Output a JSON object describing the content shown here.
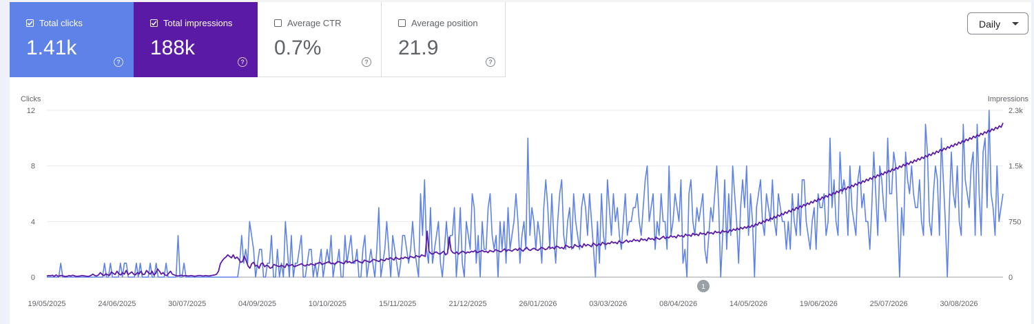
{
  "metrics": [
    {
      "label": "Total clicks",
      "value": "1.41k",
      "checked": true,
      "color": "#5e82e8"
    },
    {
      "label": "Total impressions",
      "value": "188k",
      "checked": true,
      "color": "#5a1aa6"
    },
    {
      "label": "Average CTR",
      "value": "0.7%",
      "checked": false
    },
    {
      "label": "Average position",
      "value": "21.9",
      "checked": false
    }
  ],
  "period_select": {
    "value": "Daily"
  },
  "annotation_badge": "1",
  "chart_data": {
    "type": "line",
    "left_axis": {
      "label": "Clicks",
      "ticks": [
        "12",
        "8",
        "4",
        "0"
      ],
      "range": [
        0,
        12
      ]
    },
    "right_axis": {
      "label": "Impressions",
      "ticks": [
        "2.3k",
        "1.5k",
        "750",
        "0"
      ],
      "range": [
        0,
        2250
      ]
    },
    "x_tick_labels": [
      "19/05/2025",
      "24/06/2025",
      "30/07/2025",
      "04/09/2025",
      "10/10/2025",
      "15/11/2025",
      "21/12/2025",
      "26/01/2026",
      "03/03/2026",
      "08/04/2026",
      "14/05/2026",
      "19/06/2026",
      "25/07/2026",
      "30/08/2026"
    ],
    "x_range": [
      "19/05/2025",
      "25/09/2026"
    ],
    "grid": true,
    "series": [
      {
        "name": "Clicks",
        "axis": "left",
        "color": "#5e82e8",
        "values": [
          0,
          0,
          0,
          0,
          0,
          0,
          0,
          1,
          0,
          0,
          0,
          0,
          0,
          0,
          0,
          0,
          0,
          0,
          0,
          0,
          0,
          0,
          0,
          0,
          0,
          0,
          0,
          0,
          0,
          1,
          0,
          0,
          1,
          0,
          0,
          0,
          0,
          1,
          0,
          1,
          1,
          0,
          0,
          0,
          0,
          1,
          0,
          1,
          0,
          0,
          0,
          0,
          1,
          0,
          0,
          1,
          0,
          0,
          0,
          0,
          1,
          0,
          0,
          0,
          0,
          0,
          3,
          0,
          0,
          1,
          0,
          0,
          0,
          0,
          0,
          0,
          0,
          0,
          0,
          0,
          0,
          0,
          0,
          0,
          0,
          0,
          0,
          0,
          0,
          0,
          0,
          0,
          0,
          0,
          0,
          0,
          0,
          1,
          3,
          1,
          2,
          1,
          4,
          3,
          2,
          0,
          1,
          2,
          2,
          0,
          0,
          1,
          1,
          3,
          0,
          0,
          2,
          0,
          1,
          0,
          4,
          2,
          0,
          3,
          0,
          1,
          1,
          2,
          3,
          0,
          0,
          1,
          2,
          2,
          0,
          1,
          0,
          1,
          2,
          0,
          1,
          2,
          1,
          3,
          0,
          1,
          1,
          2,
          0,
          0,
          3,
          1,
          2,
          3,
          1,
          1,
          2,
          0,
          0,
          2,
          3,
          0,
          1,
          2,
          1,
          0,
          2,
          5,
          0,
          1,
          2,
          4,
          2,
          0,
          3,
          2,
          1,
          0,
          1,
          3,
          3,
          2,
          1,
          2,
          4,
          2,
          1,
          0,
          6,
          3,
          7,
          2,
          1,
          5,
          1,
          2,
          3,
          4,
          1,
          0,
          2,
          4,
          2,
          3,
          3,
          5,
          0,
          2,
          5,
          1,
          0,
          4,
          3,
          2,
          6,
          5,
          1,
          3,
          0,
          4,
          2,
          2,
          5,
          6,
          3,
          2,
          3,
          0,
          4,
          2,
          4,
          1,
          5,
          2,
          3,
          4,
          6,
          4,
          1,
          3,
          4,
          2,
          10,
          3,
          5,
          4,
          2,
          4,
          3,
          1,
          5,
          7,
          5,
          2,
          6,
          3,
          1,
          4,
          6,
          7,
          3,
          2,
          4,
          5,
          2,
          6,
          4,
          3,
          2,
          5,
          6,
          5,
          3,
          6,
          4,
          2,
          0,
          4,
          1,
          6,
          3,
          2,
          7,
          5,
          3,
          6,
          4,
          5,
          3,
          2,
          4,
          6,
          3,
          4,
          4,
          5,
          5,
          6,
          4,
          3,
          5,
          7,
          8,
          4,
          5,
          6,
          2,
          4,
          3,
          6,
          4,
          4,
          2,
          8,
          3,
          4,
          6,
          5,
          4,
          7,
          1,
          2,
          0,
          6,
          7,
          4,
          3,
          5,
          4,
          5,
          6,
          2,
          1,
          3,
          5,
          4,
          6,
          8,
          5,
          0,
          3,
          7,
          2,
          6,
          3,
          8,
          6,
          4,
          1,
          5,
          7,
          5,
          8,
          3,
          6,
          4,
          0,
          5,
          6,
          7,
          4,
          3,
          6,
          5,
          4,
          7,
          4,
          3,
          6,
          5,
          4,
          4,
          2,
          4,
          2,
          6,
          4,
          3,
          6,
          3,
          7,
          7,
          4,
          3,
          2,
          4,
          5,
          2,
          6,
          5,
          5,
          6,
          3,
          4,
          10,
          5,
          7,
          4,
          3,
          9,
          6,
          7,
          6,
          3,
          8,
          5,
          4,
          3,
          7,
          8,
          5,
          6,
          4,
          4,
          2,
          5,
          9,
          6,
          3,
          8,
          7,
          5,
          4,
          10,
          6,
          6,
          9,
          8,
          4,
          0,
          5,
          3,
          9,
          7,
          6,
          8,
          6,
          5,
          5,
          7,
          4,
          3,
          11,
          9,
          4,
          3,
          6,
          8,
          7,
          3,
          10,
          7,
          4,
          0,
          5,
          9,
          6,
          5,
          8,
          4,
          3,
          11,
          7,
          6,
          5,
          8,
          9,
          3,
          11,
          6,
          3,
          9,
          10,
          5,
          12,
          6,
          5,
          3,
          8,
          4,
          5,
          6
        ],
        "approximate": true
      },
      {
        "name": "Impressions",
        "axis": "right",
        "color": "#5a1aa6",
        "values": [
          15,
          20,
          18,
          25,
          10,
          30,
          12,
          18,
          22,
          15,
          8,
          12,
          20,
          15,
          25,
          18,
          10,
          12,
          15,
          20,
          18,
          14,
          10,
          12,
          25,
          40,
          20,
          15,
          30,
          60,
          35,
          20,
          45,
          30,
          25,
          70,
          50,
          35,
          80,
          45,
          30,
          60,
          40,
          90,
          35,
          50,
          70,
          40,
          30,
          60,
          45,
          80,
          35,
          40,
          90,
          60,
          40,
          80,
          30,
          50,
          110,
          80,
          40,
          60,
          30,
          20,
          50,
          80,
          40,
          30,
          20,
          15,
          20,
          25,
          15,
          20,
          18,
          15,
          20,
          18,
          12,
          15,
          20,
          22,
          18,
          15,
          20,
          18,
          15,
          20,
          25,
          30,
          40,
          80,
          180,
          220,
          250,
          270,
          300,
          280,
          260,
          300,
          250,
          270,
          240,
          200,
          210,
          280,
          220,
          150,
          120,
          180,
          200,
          150,
          160,
          120,
          180,
          190,
          140,
          160,
          150,
          120,
          130,
          170,
          160,
          150,
          140,
          160,
          150,
          130,
          180,
          150,
          160,
          170,
          140,
          150,
          160,
          170,
          180,
          160,
          150,
          170,
          160,
          180,
          170,
          160,
          180,
          190,
          200,
          170,
          180,
          190,
          200,
          210,
          180,
          190,
          170,
          200,
          210,
          200,
          190,
          180,
          220,
          200,
          210,
          190,
          200,
          220,
          230,
          210,
          200,
          190,
          230,
          220,
          210,
          200,
          220,
          240,
          230,
          220,
          210,
          240,
          230,
          220,
          250,
          240,
          260,
          250,
          230,
          270,
          250,
          240,
          260,
          250,
          270,
          260,
          250,
          280,
          270,
          260,
          290,
          280,
          270,
          300,
          290,
          280,
          620,
          350,
          320,
          310,
          330,
          340,
          320,
          310,
          330,
          350,
          300,
          320,
          540,
          360,
          330,
          320,
          340,
          310,
          330,
          350,
          340,
          320,
          340,
          330,
          350,
          340,
          360,
          330,
          340,
          350,
          360,
          340,
          350,
          330,
          360,
          350,
          340,
          370,
          360,
          350,
          340,
          360,
          380,
          350,
          370,
          360,
          350,
          370,
          380,
          360,
          390,
          370,
          350,
          380,
          400,
          370,
          360,
          380,
          390,
          370,
          360,
          380,
          400,
          390,
          370,
          380,
          410,
          390,
          400,
          380,
          420,
          410,
          390,
          400,
          380,
          430,
          420,
          400,
          410,
          390,
          440,
          420,
          410,
          430,
          400,
          450,
          420,
          440,
          430,
          410,
          460,
          440,
          420,
          450,
          430,
          470,
          450,
          440,
          460,
          450,
          480,
          460,
          470,
          450,
          490,
          470,
          460,
          480,
          500,
          470,
          490,
          480,
          510,
          490,
          500,
          480,
          520,
          500,
          510,
          490,
          530,
          510,
          520,
          500,
          540,
          520,
          510,
          530,
          550,
          520,
          540,
          530,
          560,
          540,
          550,
          530,
          570,
          550,
          560,
          540,
          580,
          560,
          570,
          550,
          590,
          570,
          580,
          560,
          600,
          580,
          590,
          570,
          610,
          590,
          600,
          580,
          620,
          600,
          610,
          590,
          630,
          610,
          620,
          600,
          640,
          620,
          650,
          630,
          660,
          640,
          670,
          650,
          680,
          660,
          690,
          670,
          700,
          680,
          720,
          700,
          740,
          720,
          760,
          740,
          780,
          760,
          800,
          780,
          820,
          800,
          840,
          820,
          860,
          840,
          880,
          860,
          900,
          880,
          920,
          900,
          940,
          920,
          960,
          940,
          980,
          960,
          1000,
          980,
          1020,
          1000,
          1040,
          1020,
          1060,
          1040,
          1080,
          1060,
          1100,
          1080,
          1120,
          1100,
          1140,
          1120,
          1160,
          1140,
          1180,
          1160,
          1200,
          1180,
          1220,
          1200,
          1240,
          1220,
          1260,
          1240,
          1280,
          1260,
          1300,
          1280,
          1320,
          1300,
          1340,
          1320,
          1360,
          1340,
          1380,
          1360,
          1400,
          1380,
          1420,
          1400,
          1440,
          1420,
          1460,
          1440,
          1480,
          1460,
          1500,
          1480,
          1520,
          1500,
          1540,
          1520,
          1560,
          1540,
          1580,
          1560,
          1600,
          1580,
          1620,
          1600,
          1640,
          1620,
          1660,
          1640,
          1680,
          1660,
          1700,
          1680,
          1720,
          1700,
          1740,
          1720,
          1760,
          1740,
          1780,
          1760,
          1800,
          1780,
          1820,
          1800,
          1840,
          1820,
          1860,
          1840,
          1880,
          1860,
          1900,
          1880,
          1920,
          1900,
          1940,
          1920,
          1960,
          1940,
          1980,
          1960,
          2000,
          1980,
          2020,
          2000,
          2040,
          2020,
          2080
        ],
        "approximate": true
      }
    ]
  }
}
